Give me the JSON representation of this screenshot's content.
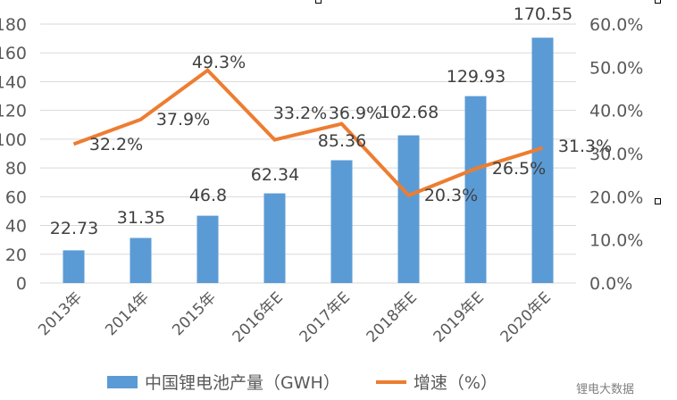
{
  "chart_data": {
    "type": "bar+line",
    "title": "",
    "categories": [
      "2013年",
      "2014年",
      "2015年",
      "2016年E",
      "2017年E",
      "2018年E",
      "2019年E",
      "2020年E"
    ],
    "series": [
      {
        "name": "中国锂电池产量（GWH）",
        "type": "bar",
        "axis": "left",
        "color": "#5b9bd5",
        "values": [
          22.73,
          31.35,
          46.8,
          62.34,
          85.36,
          102.68,
          129.93,
          170.55
        ],
        "labels": [
          "22.73",
          "31.35",
          "46.8",
          "62.34",
          "85.36",
          "102.68",
          "129.93",
          "170.55"
        ]
      },
      {
        "name": "增速（%）",
        "type": "line",
        "axis": "right",
        "color": "#ed7d31",
        "values": [
          32.2,
          37.9,
          49.3,
          33.2,
          36.9,
          20.3,
          26.5,
          31.3
        ],
        "labels": [
          "32.2%",
          "37.9%",
          "49.3%",
          "33.2%",
          "36.9%",
          "20.3%",
          "26.5%",
          "31.3%"
        ]
      }
    ],
    "left_axis": {
      "ylim": [
        0,
        180
      ],
      "ticks": [
        "0",
        "20",
        "40",
        "60",
        "80",
        "100",
        "120",
        "140",
        "160",
        "180"
      ]
    },
    "right_axis": {
      "ylim": [
        0,
        60
      ],
      "ticks": [
        "0.0%",
        "10.0%",
        "20.0%",
        "30.0%",
        "40.0%",
        "50.0%",
        "60.0%"
      ]
    },
    "grid": true,
    "legend_position": "bottom"
  },
  "legend": {
    "bar_label": "中国锂电池产量（GWH）",
    "line_label": "增速（%）"
  },
  "source": "锂电大数据"
}
